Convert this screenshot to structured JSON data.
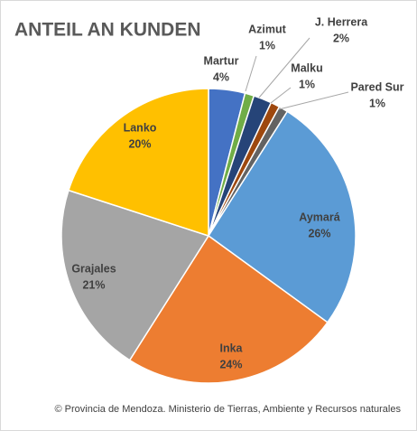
{
  "chart_data": {
    "type": "pie",
    "title": "ANTEIL AN KUNDEN",
    "categories": [
      "Martur",
      "Azimut",
      "J. Herrera",
      "Malku",
      "Pared Sur",
      "Aymará",
      "Inka",
      "Grajales",
      "Lanko"
    ],
    "values": [
      4,
      1,
      2,
      1,
      1,
      26,
      24,
      21,
      20
    ],
    "value_labels": [
      "4%",
      "1%",
      "2%",
      "1%",
      "1%",
      "26%",
      "24%",
      "21%",
      "20%"
    ],
    "colors": [
      "#4472c4",
      "#70ad47",
      "#264478",
      "#9e480e",
      "#636363",
      "#5b9bd5",
      "#ed7d31",
      "#a5a5a5",
      "#ffc000"
    ],
    "source": "© Provincia de Mendoza. Ministerio de Tierras, Ambiente y Recursos naturales"
  }
}
